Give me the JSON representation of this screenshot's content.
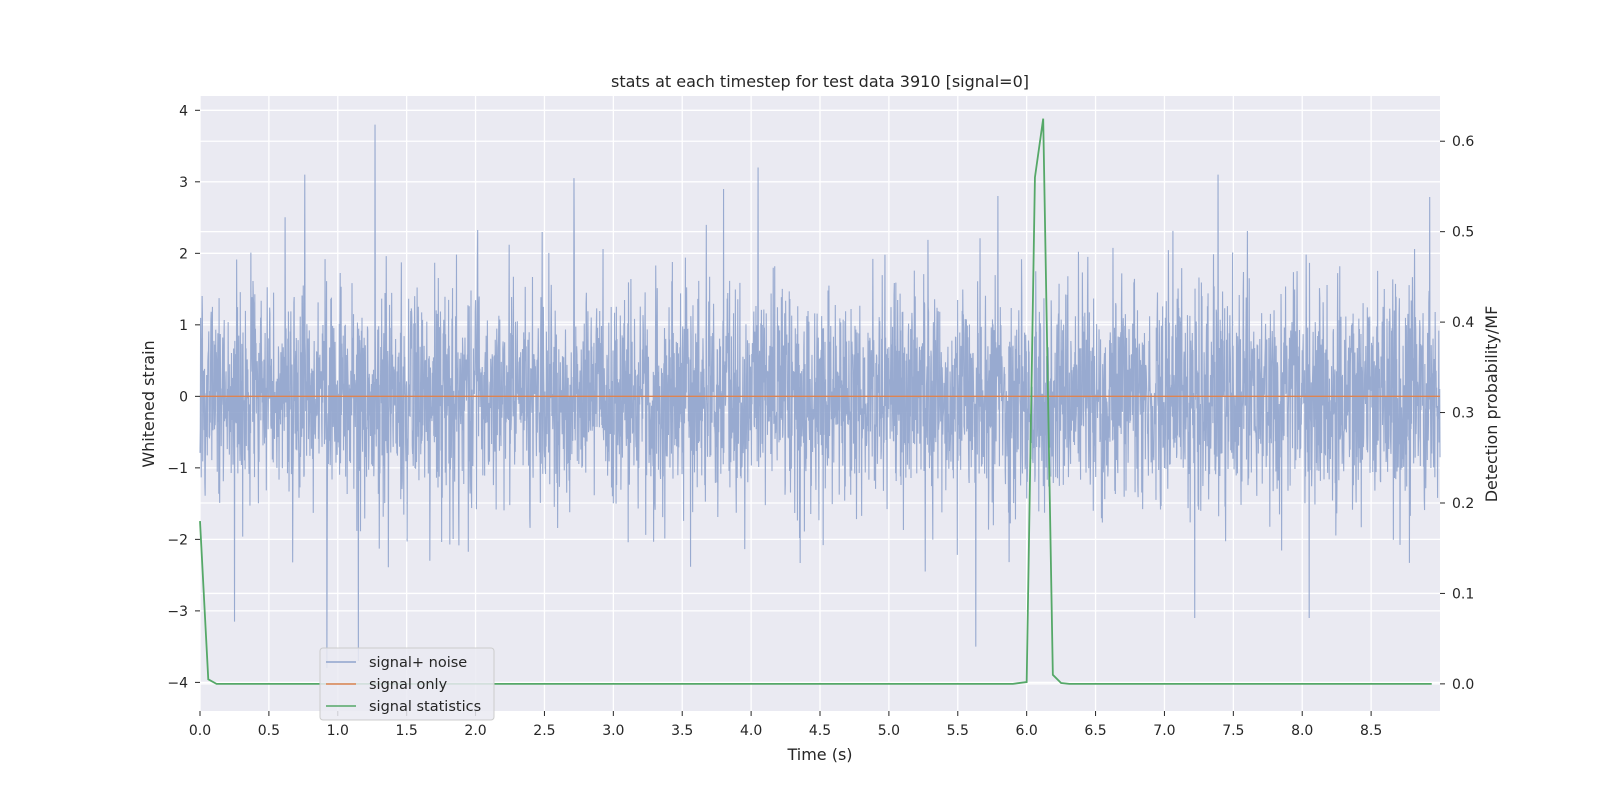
{
  "chart_data": {
    "type": "line",
    "title": "stats at each timestep for test data 3910 [signal=0]",
    "xlabel": "Time (s)",
    "ylabel_left": "Whitened strain",
    "ylabel_right": "Detection probability/MF",
    "xlim": [
      0,
      9
    ],
    "ylim_left": [
      -4.4,
      4.2
    ],
    "ylim_right": [
      -0.03,
      0.65
    ],
    "x_ticks": [
      "0.0",
      "0.5",
      "1.0",
      "1.5",
      "2.0",
      "2.5",
      "3.0",
      "3.5",
      "4.0",
      "4.5",
      "5.0",
      "5.5",
      "6.0",
      "6.5",
      "7.0",
      "7.5",
      "8.0",
      "8.5"
    ],
    "y_ticks_left": [
      "−4",
      "−3",
      "−2",
      "−1",
      "0",
      "1",
      "2",
      "3",
      "4"
    ],
    "y_ticks_right": [
      "0.0",
      "0.1",
      "0.2",
      "0.3",
      "0.4",
      "0.5",
      "0.6"
    ],
    "grid": true,
    "legend_position": "lower-left",
    "series": [
      {
        "name": "signal+ noise",
        "axis": "left",
        "color": "#8fa3cc",
        "kind": "whitened noise, roughly unit variance, about 4096 samples over 0 to 9 s",
        "peaks": [
          {
            "x": 0.76,
            "y": 3.1
          },
          {
            "x": 1.27,
            "y": 3.8
          },
          {
            "x": 3.8,
            "y": 2.9
          },
          {
            "x": 4.05,
            "y": 3.2
          },
          {
            "x": 7.39,
            "y": 3.1
          },
          {
            "x": 0.92,
            "y": -3.8
          },
          {
            "x": 1.15,
            "y": -3.7
          },
          {
            "x": 5.63,
            "y": -3.5
          },
          {
            "x": 7.22,
            "y": -3.1
          },
          {
            "x": 8.05,
            "y": -3.1
          },
          {
            "x": 0.25,
            "y": -3.15
          }
        ]
      },
      {
        "name": "signal only",
        "axis": "left",
        "color": "#dd8452",
        "x": [
          0,
          9
        ],
        "y": [
          0,
          0
        ]
      },
      {
        "name": "signal statistics",
        "axis": "right",
        "color": "#55a868",
        "x": [
          0.0,
          0.06,
          0.12,
          0.5,
          1.0,
          2.0,
          3.0,
          4.0,
          5.0,
          5.9,
          6.0,
          6.06,
          6.12,
          6.19,
          6.25,
          6.31,
          7.0,
          8.0,
          8.94
        ],
        "y": [
          0.18,
          0.005,
          0.0,
          0.0,
          0.0,
          0.0,
          0.0,
          0.0,
          0.0,
          0.0,
          0.002,
          0.56,
          0.625,
          0.01,
          0.001,
          0.0,
          0.0,
          0.0,
          0.0
        ]
      }
    ]
  }
}
